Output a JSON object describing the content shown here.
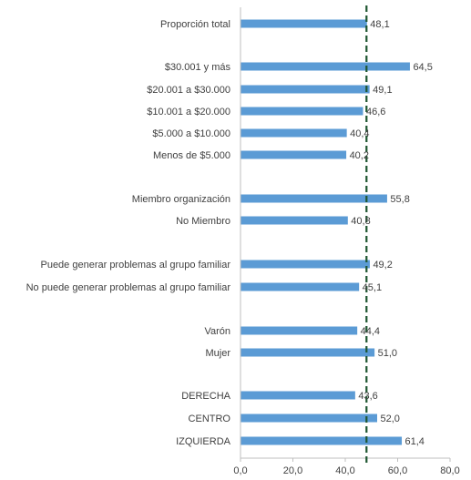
{
  "chart_data": {
    "type": "bar",
    "orientation": "horizontal",
    "categories": [
      "Proporción total",
      "$30.001 y más",
      "$20.001 a $30.000",
      "$10.001 a $20.000",
      "$5.000 a $10.000",
      "Menos de $5.000",
      "Miembro organización",
      "No Miembro",
      "Puede generar problemas al grupo familiar",
      "No puede generar problemas al grupo familiar",
      "Varón",
      "Mujer",
      "DERECHA",
      "CENTRO",
      "IZQUIERDA"
    ],
    "values": [
      48.1,
      64.5,
      49.1,
      46.6,
      40.4,
      40.2,
      55.8,
      40.8,
      49.2,
      45.1,
      44.4,
      51.0,
      43.6,
      52.0,
      61.4
    ],
    "value_labels": [
      "48,1",
      "64,5",
      "49,1",
      "46,6",
      "40,4",
      "40,2",
      "55,8",
      "40,8",
      "49,2",
      "45,1",
      "44,4",
      "51,0",
      "43,6",
      "52,0",
      "61,4"
    ],
    "xlim": [
      0,
      80
    ],
    "x_ticks": [
      "0,0",
      "20,0",
      "40,0",
      "60,0",
      "80,0"
    ],
    "reference_line": 48.1,
    "grid": false,
    "colors": {
      "bar": "#5B9BD5",
      "reference_line": "#1E5631",
      "text": "#404040",
      "axis": "#BFBFBF"
    }
  }
}
